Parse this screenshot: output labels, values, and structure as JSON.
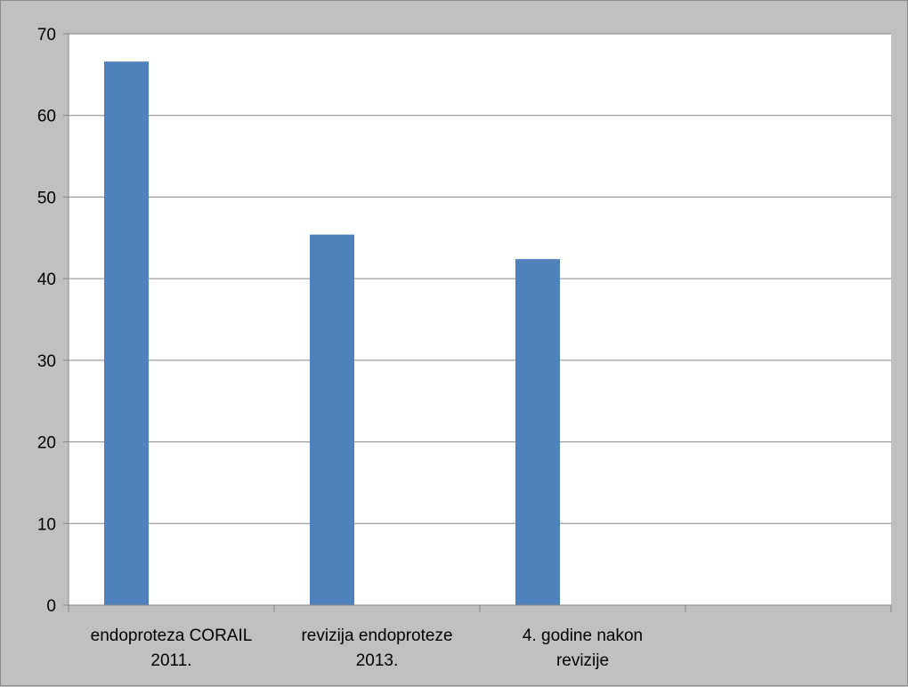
{
  "chart_data": {
    "type": "bar",
    "categories": [
      [
        "endoproteza CORAIL",
        "2011."
      ],
      [
        "revizija endoproteze",
        "2013."
      ],
      [
        "4. godine nakon",
        "revizije"
      ],
      [
        ""
      ]
    ],
    "values": [
      66.6,
      45.4,
      42.4,
      null
    ],
    "ylim": [
      0,
      70
    ],
    "yticks": [
      0,
      10,
      20,
      30,
      40,
      50,
      60,
      70
    ],
    "grid": true,
    "legend": "none",
    "colors": {
      "bar": "#4f81bd",
      "grid": "#868686",
      "plot_bg": "#ffffff",
      "outer_bg": "#c0c0c0"
    }
  }
}
